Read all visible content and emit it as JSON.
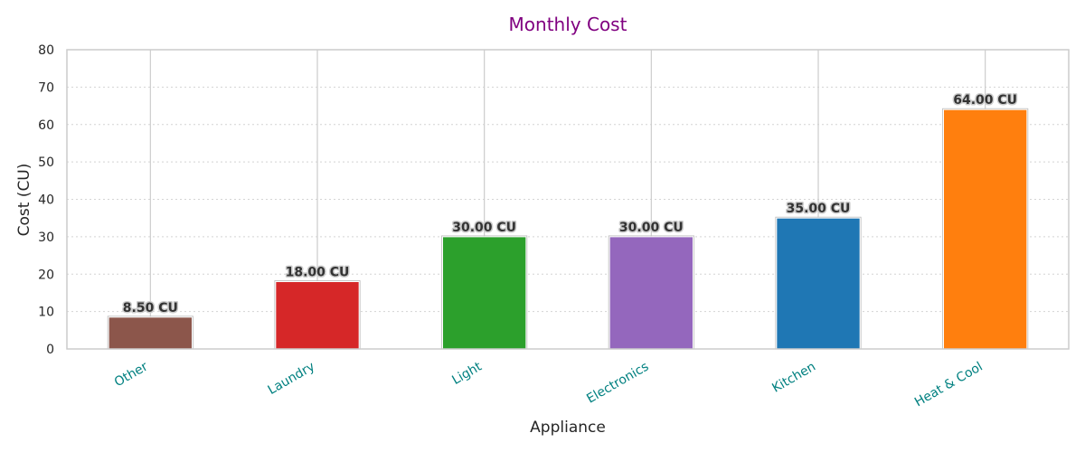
{
  "chart_data": {
    "type": "bar",
    "title": "Monthly Cost",
    "xlabel": "Appliance",
    "ylabel": "Cost (CU)",
    "categories": [
      "Other",
      "Laundry",
      "Light",
      "Electronics",
      "Kitchen",
      "Heat & Cool"
    ],
    "values": [
      8.5,
      18,
      30,
      30,
      35,
      64
    ],
    "value_labels": [
      "8.50 CU",
      "18.00 CU",
      "30.00 CU",
      "30.00 CU",
      "35.00 CU",
      "64.00 CU"
    ],
    "bar_colors": [
      "#8c564b",
      "#d62728",
      "#2ca02c",
      "#9467bd",
      "#1f77b4",
      "#ff7f0e"
    ],
    "ylim": [
      0,
      80
    ],
    "yticks": [
      0,
      10,
      20,
      30,
      40,
      50,
      60,
      70,
      80
    ],
    "grid": true,
    "colors": {
      "title": "#800080",
      "xtick_labels": "#008080",
      "grid": "#d4d4d4",
      "frame": "#cccccc"
    }
  }
}
